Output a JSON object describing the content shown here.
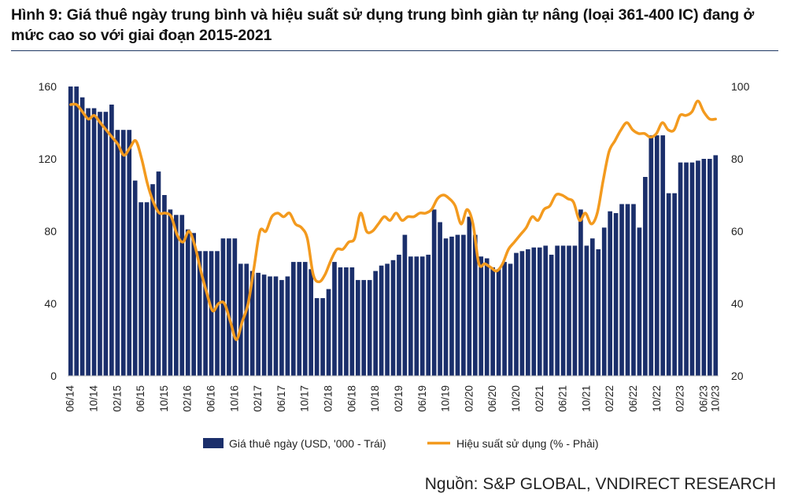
{
  "figure": {
    "title": "Hình 9: Giá thuê ngày trung bình và hiệu suất sử dụng trung bình giàn tự nâng (loại 361-400 IC) đang ở mức cao so với giai đoạn 2015-2021",
    "source": "Nguồn: S&P GLOBAL, VNDIRECT RESEARCH"
  },
  "chart_data": {
    "type": "bar",
    "title": "",
    "xlabel": "",
    "ylabel": "",
    "ylim": [
      0,
      160
    ],
    "y2lim": [
      20,
      100
    ],
    "yticks": [
      0,
      40,
      80,
      120,
      160
    ],
    "y2ticks": [
      20,
      40,
      60,
      80,
      100
    ],
    "grid": false,
    "legend": "bottom",
    "colors": {
      "bar": "#1b2f6b",
      "line": "#f39a1e"
    },
    "x_tick_labels": [
      "06/14",
      "10/14",
      "02/15",
      "06/15",
      "10/15",
      "02/16",
      "06/16",
      "10/16",
      "02/17",
      "06/17",
      "10/17",
      "02/18",
      "06/18",
      "10/18",
      "02/19",
      "06/19",
      "10/19",
      "02/20",
      "06/20",
      "10/20",
      "02/21",
      "06/21",
      "10/21",
      "02/22",
      "06/22",
      "10/22",
      "02/23",
      "06/23",
      "10/23"
    ],
    "x_tick_step": 4,
    "series": [
      {
        "name": "Giá thuê ngày (USD, '000 - Trái)",
        "type": "bar",
        "axis": "left",
        "values": [
          160,
          160,
          154,
          148,
          148,
          146,
          146,
          150,
          136,
          136,
          136,
          108,
          96,
          96,
          106,
          113,
          100,
          92,
          89,
          89,
          81,
          79,
          69,
          69,
          69,
          69,
          76,
          76,
          76,
          62,
          62,
          58,
          57,
          56,
          55,
          55,
          53,
          55,
          63,
          63,
          63,
          59,
          43,
          43,
          48,
          63,
          60,
          60,
          60,
          53,
          53,
          53,
          58,
          61,
          62,
          64,
          67,
          78,
          66,
          66,
          66,
          67,
          92,
          85,
          76,
          77,
          78,
          78,
          88,
          78,
          66,
          65,
          60,
          59,
          63,
          62,
          68,
          69,
          70,
          71,
          71,
          72,
          67,
          72,
          72,
          72,
          72,
          92,
          72,
          76,
          70,
          82,
          91,
          90,
          95,
          95,
          95,
          82,
          110,
          133,
          133,
          133,
          101,
          101,
          118,
          118,
          118,
          119,
          120,
          120,
          122
        ]
      },
      {
        "name": "Hiệu suất sử dụng (% - Phải)",
        "type": "line",
        "axis": "right",
        "values": [
          95,
          95,
          93,
          91,
          92,
          90,
          88,
          86,
          84,
          81,
          83,
          85,
          80,
          73,
          68,
          65,
          65,
          64,
          59,
          57,
          60,
          56,
          49,
          43,
          38,
          40,
          40,
          35,
          30,
          35,
          40,
          50,
          60,
          60,
          64,
          65,
          64,
          65,
          62,
          61,
          58,
          48,
          46,
          48,
          52,
          55,
          55,
          57,
          58,
          65,
          60,
          60,
          62,
          64,
          63,
          65,
          63,
          64,
          64,
          65,
          65,
          66,
          69,
          70,
          69,
          67,
          62,
          66,
          62,
          51,
          51,
          50,
          49,
          51,
          55,
          57,
          59,
          61,
          64,
          63,
          66,
          67,
          70,
          70,
          69,
          68,
          63,
          65,
          62,
          65,
          74,
          82,
          85,
          88,
          90,
          88,
          87,
          87,
          86,
          87,
          90,
          88,
          88,
          92,
          92,
          93,
          96,
          93,
          91,
          91
        ]
      }
    ]
  }
}
